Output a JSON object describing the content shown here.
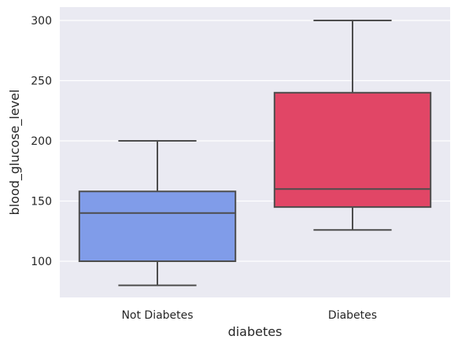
{
  "chart_data": {
    "type": "box",
    "xlabel": "diabetes",
    "ylabel": "blood_glucose_level",
    "ylim": [
      70,
      310
    ],
    "yticks": [
      100,
      150,
      200,
      250,
      300
    ],
    "grid": true,
    "background": "#EAEAF2",
    "categories": [
      "Not Diabetes",
      "Diabetes"
    ],
    "boxes": [
      {
        "category": "Not Diabetes",
        "color": "#809CE9",
        "whisker_low": 80,
        "q1": 100,
        "median": 140,
        "q3": 158,
        "whisker_high": 200
      },
      {
        "category": "Diabetes",
        "color": "#E14666",
        "whisker_low": 126,
        "q1": 145,
        "median": 160,
        "q3": 240,
        "whisker_high": 300
      }
    ]
  }
}
